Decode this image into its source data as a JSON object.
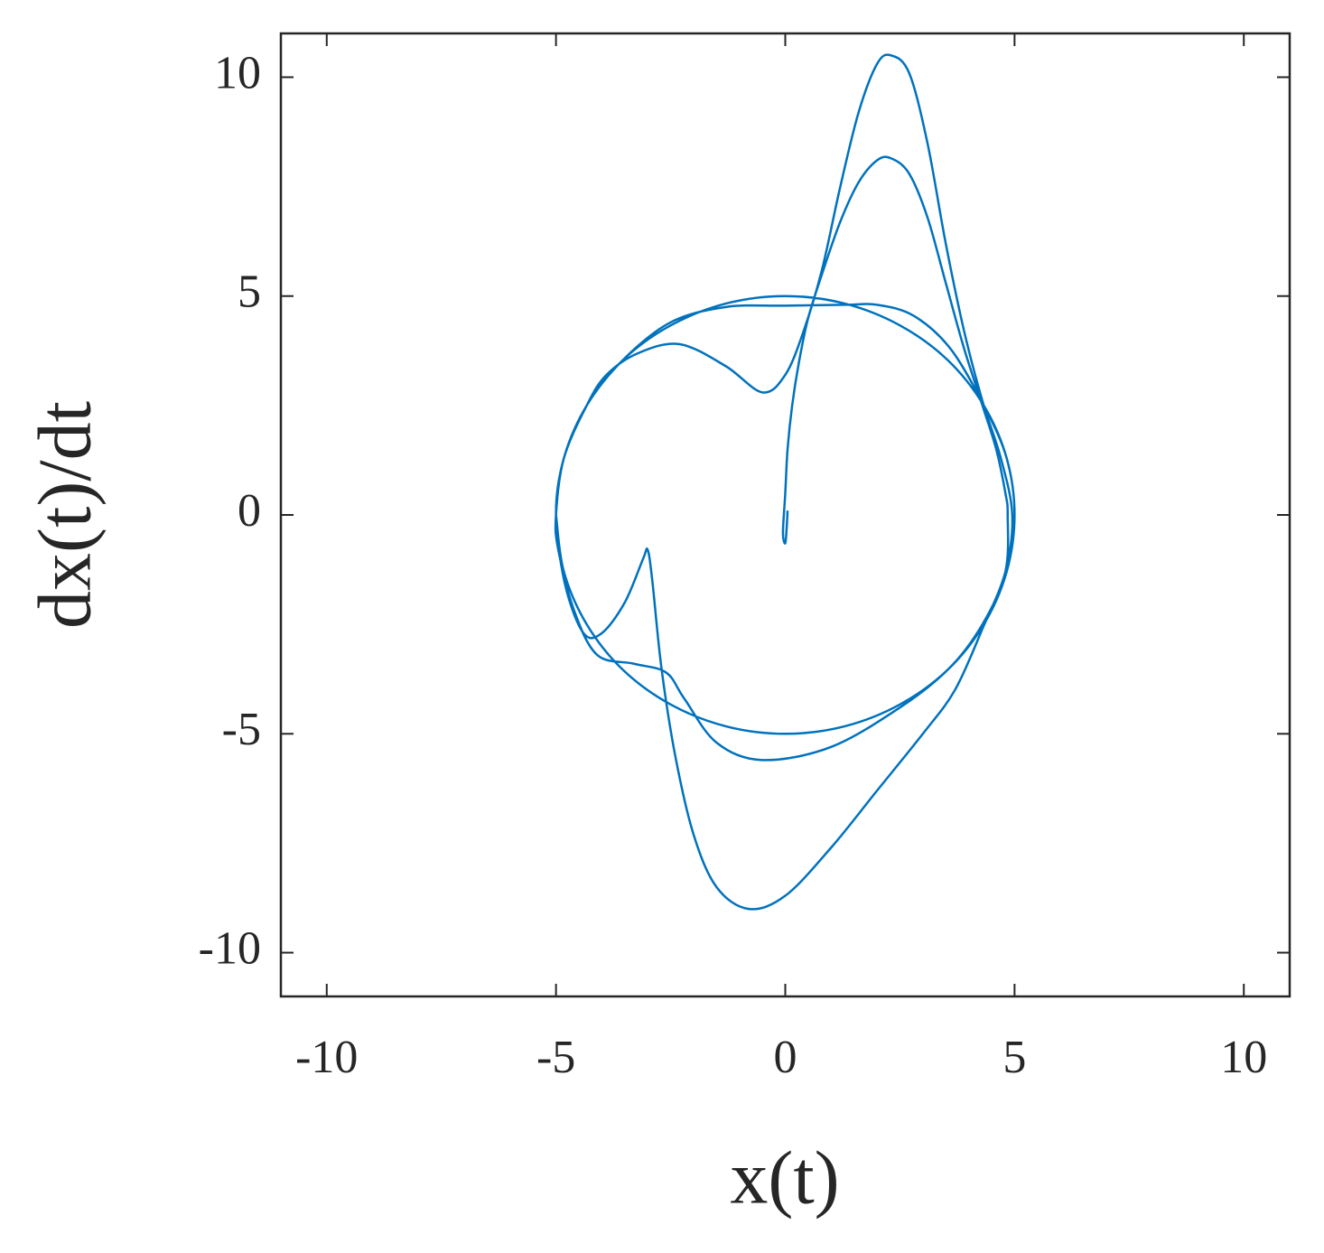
{
  "chart_data": {
    "type": "line",
    "xlabel": "x(t)",
    "ylabel": "dx(t)/dt",
    "color": "#0072bd",
    "xlim": [
      -11,
      11
    ],
    "ylim": [
      -11,
      11
    ],
    "xticks": [
      -10,
      -5,
      0,
      5,
      10
    ],
    "yticks": [
      -10,
      -5,
      0,
      5,
      10
    ],
    "grid": false,
    "x": [
      0.05,
      0.03,
      0,
      -0.05,
      0,
      0.05,
      0.15,
      0.3,
      0.5,
      0.8,
      1.2,
      1.6,
      2.0,
      2.3,
      2.7,
      3.1,
      3.5,
      3.9,
      4.3,
      4.6,
      4.8,
      4.85,
      4.8,
      4.3,
      3.54,
      2.5,
      1.29,
      0,
      -1.29,
      -2.5,
      -3.54,
      -4.33,
      -4.83,
      -5,
      -4.83,
      -4.33,
      -3.9,
      -3.2,
      -2.3,
      -1.3,
      -0.5,
      0,
      0.4,
      0.8,
      1.2,
      1.6,
      2.0,
      2.3,
      2.7,
      3.1,
      3.5,
      3.9,
      4.3,
      4.7,
      4.95,
      4.8,
      4.3,
      3.7,
      3,
      2,
      1,
      0,
      -0.8,
      -1.5,
      -2,
      -2.4,
      -2.7,
      -2.9,
      -3,
      -3.1,
      -3.5,
      -4,
      -4.4,
      -4.8,
      -5,
      -4.83,
      -4.33,
      -3.54,
      -2.5,
      -1.3,
      0,
      1.3,
      2,
      2.8,
      3.6,
      4.33,
      4.83,
      5,
      4.83,
      4.33,
      3.54,
      2.5,
      1,
      -0.5,
      -1.5,
      -2.2,
      -2.6,
      -3.3,
      -4.1,
      -4.6,
      -4.95,
      -5,
      -4.83,
      -4.33,
      -3.54,
      -2.5,
      -1.29,
      0,
      1.29,
      2.5,
      3.54,
      4.33,
      4.83,
      5,
      4.83,
      4.33,
      3.54,
      2.5,
      1.29,
      0,
      -1.29,
      -2.5,
      -3.54,
      -4.33,
      -4.83,
      -5
    ],
    "y": [
      0.1,
      -0.3,
      -0.65,
      -0.4,
      0.5,
      1.5,
      2.5,
      3.5,
      4.5,
      5.5,
      6.7,
      7.6,
      8.1,
      8.15,
      7.8,
      6.8,
      5.3,
      3.8,
      2.5,
      1.5,
      0.5,
      0,
      -1.3,
      -2.5,
      -3.54,
      -4.33,
      -4.83,
      -5,
      -4.83,
      -4.33,
      -3.54,
      -2.5,
      -1.29,
      0,
      1.29,
      2.5,
      3.2,
      3.7,
      3.9,
      3.4,
      2.8,
      3.2,
      4.2,
      5.6,
      7.5,
      9.2,
      10.3,
      10.5,
      10.1,
      8.5,
      6.2,
      4.2,
      2.6,
      1.3,
      0,
      -1.3,
      -2.6,
      -4.0,
      -5,
      -6.3,
      -7.6,
      -8.7,
      -9,
      -8.5,
      -7.3,
      -5.5,
      -3.5,
      -1.5,
      -0.8,
      -1,
      -2,
      -2.7,
      -2.7,
      -1.6,
      0,
      1.29,
      2.5,
      3.54,
      4.4,
      4.75,
      4.78,
      4.8,
      4.8,
      4.55,
      3.8,
      2.5,
      1.29,
      0,
      -1.29,
      -2.5,
      -3.54,
      -4.4,
      -5.3,
      -5.6,
      -5.2,
      -4.2,
      -3.6,
      -3.4,
      -3.2,
      -2.2,
      -0.8,
      0,
      1.29,
      2.5,
      3.54,
      4.33,
      4.83,
      5,
      4.83,
      4.33,
      3.54,
      2.5,
      1.29,
      0,
      -1.29,
      -2.5,
      -3.54,
      -4.33,
      -4.83,
      -5,
      -4.83,
      -4.33,
      -3.54,
      -2.5,
      -1.29,
      0
    ]
  }
}
